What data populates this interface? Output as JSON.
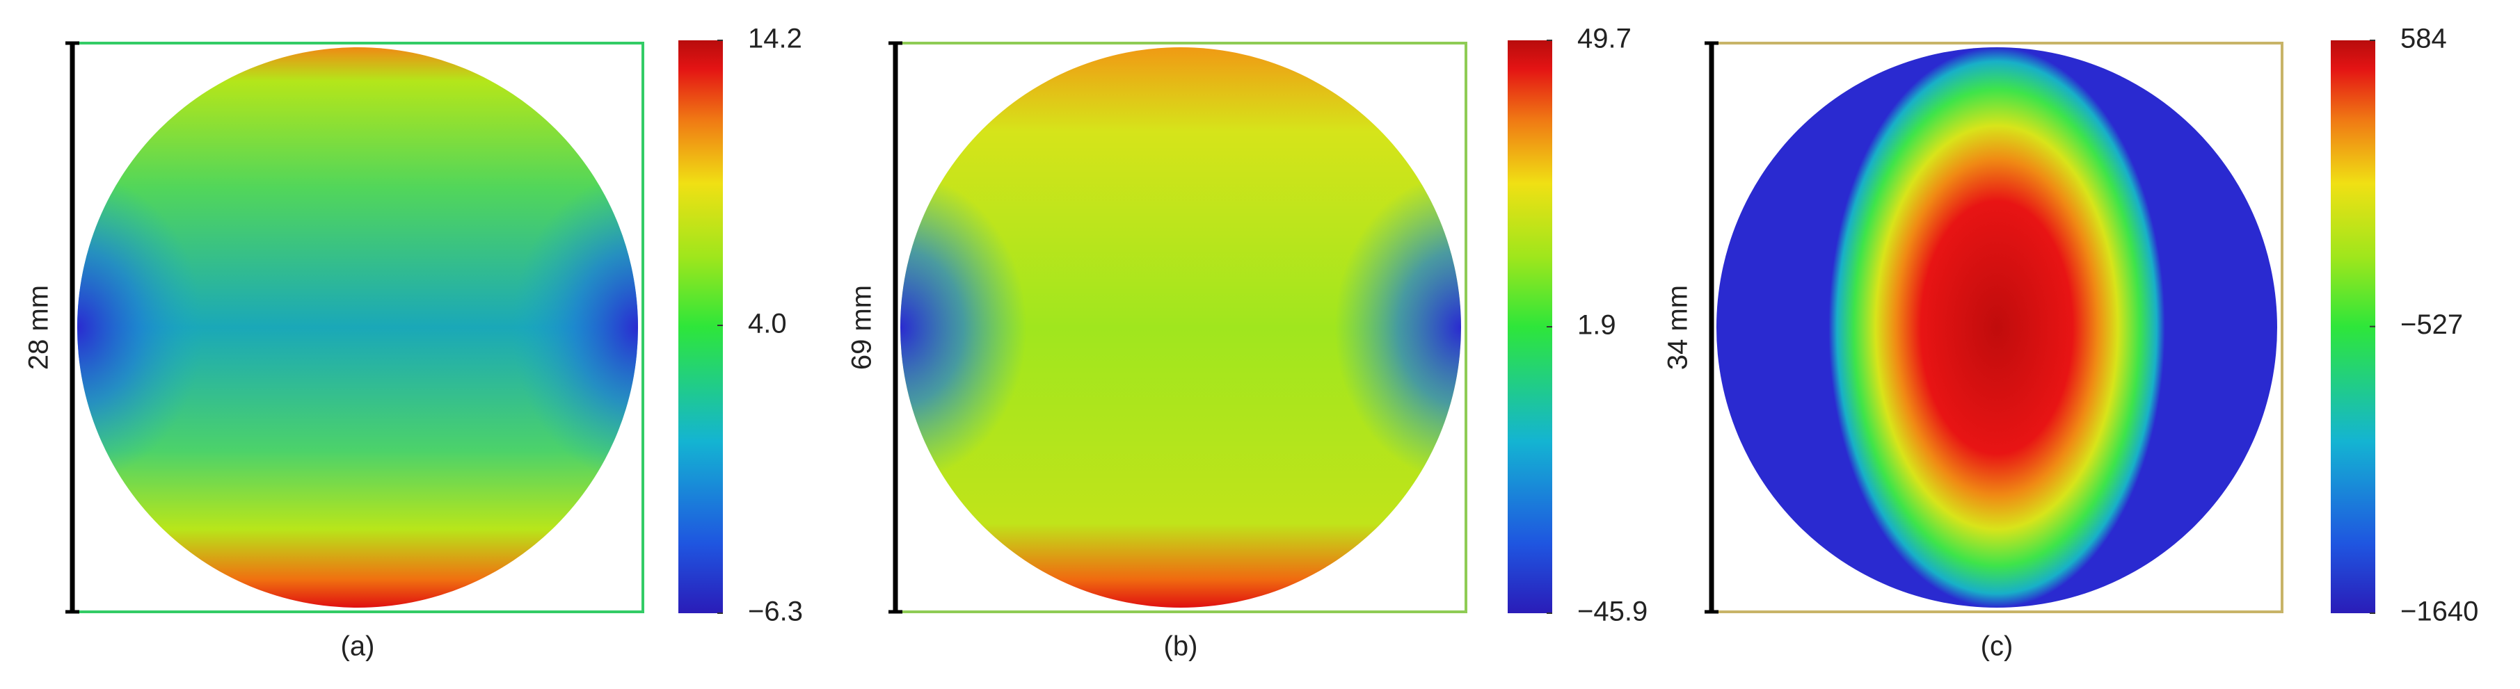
{
  "chart_data": [
    {
      "type": "heatmap",
      "caption": "(a)",
      "scale_label": "28 mm",
      "frame_color": "#33cc66",
      "zlim": [
        -6.3,
        14.2
      ],
      "zticks": [
        {
          "value": -6.3,
          "label": "−6.3"
        },
        {
          "value": 4.0,
          "label": "4.0"
        },
        14.2
      ]
    },
    {
      "type": "heatmap",
      "caption": "(b)",
      "scale_label": "69 mm",
      "frame_color": "#8fcc55",
      "zlim": [
        -45.9,
        49.7
      ],
      "zticks": [
        {
          "value": -45.9,
          "label": "−45.9"
        },
        1.9,
        49.7
      ]
    },
    {
      "type": "heatmap",
      "caption": "(c)",
      "scale_label": "34 mm",
      "frame_color": "#c8b468",
      "zlim": [
        -1640,
        584
      ],
      "zticks": [
        {
          "value": -1640,
          "label": "−1640"
        },
        {
          "value": -527,
          "label": "−527"
        },
        584
      ]
    }
  ]
}
